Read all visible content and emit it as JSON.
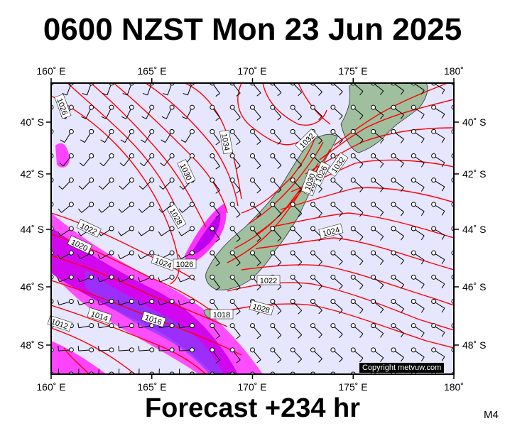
{
  "title": "0600 NZST Mon 23 Jun 2025",
  "footer": "Forecast +234 hr",
  "model_label": "M4",
  "copyright": "Copyright metvuw.com",
  "map": {
    "lon_min": 160,
    "lon_max": 180,
    "lat_min": -49,
    "lat_max": -38.5,
    "lon_ticks_top": [
      "160˚ E",
      "165˚ E",
      "170˚ E",
      "175˚ E",
      "180˚"
    ],
    "lon_ticks_bottom": [
      "160˚ E",
      "165˚ E",
      "170˚ E",
      "175˚ E",
      "180˚"
    ],
    "lat_ticks_left": [
      "40˚ S",
      "42˚ S",
      "44˚ S",
      "46˚ S",
      "48˚ S"
    ],
    "lat_ticks_right": [
      "40˚ S",
      "42˚ S",
      "44˚ S",
      "46˚ S",
      "48˚ S"
    ],
    "lon_values": [
      160,
      165,
      170,
      175,
      180
    ],
    "lat_values": [
      -40,
      -42,
      -44,
      -46,
      -48
    ],
    "colors": {
      "ocean": "#e6e6ff",
      "isobar": "#ff0000",
      "land": "#9fbf9f",
      "rain_light": "#ff44ff",
      "rain_mid": "#cc00cc",
      "rain_heavy": "#7a3cff"
    },
    "isobar_labels": [
      "1026",
      "1034",
      "1030",
      "1032",
      "1028",
      "1022",
      "1020",
      "1024",
      "1026",
      "1024",
      "1022",
      "1028",
      "1014",
      "1016",
      "1012",
      "1018",
      "1024",
      "1026",
      "1030",
      "1032"
    ]
  }
}
